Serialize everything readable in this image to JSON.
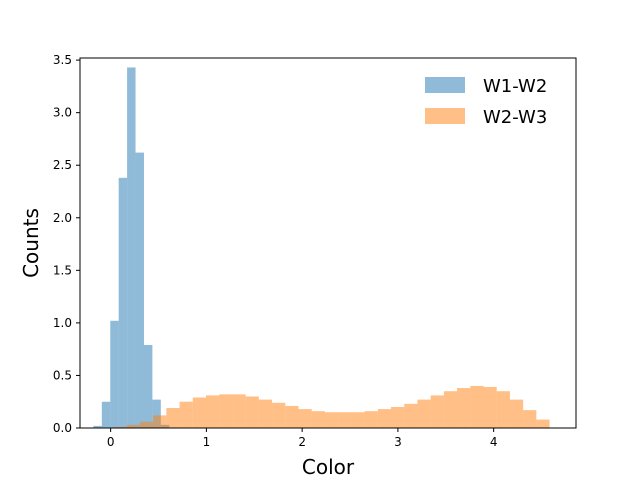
{
  "chart_data": {
    "type": "bar",
    "title": "",
    "xlabel": "Color",
    "ylabel": "Counts",
    "xlim": [
      -0.32,
      4.86
    ],
    "ylim": [
      0,
      3.52
    ],
    "x_ticks": [
      0,
      1,
      2,
      3,
      4
    ],
    "y_ticks": [
      0.0,
      0.5,
      1.0,
      1.5,
      2.0,
      2.5,
      3.0,
      3.5
    ],
    "x_tick_labels": [
      "0",
      "1",
      "2",
      "3",
      "4"
    ],
    "y_tick_labels": [
      "0.0",
      "0.5",
      "1.0",
      "1.5",
      "2.0",
      "2.5",
      "3.0",
      "3.5"
    ],
    "grid": false,
    "legend_position": "top-right",
    "series": [
      {
        "name": "W1-W2",
        "color": "#1f77b4",
        "opacity": 0.5,
        "bin_width": 0.088,
        "bin_starts": [
          -0.18,
          -0.092,
          -0.004,
          0.084,
          0.172,
          0.26,
          0.348,
          0.436,
          0.524
        ],
        "values": [
          0.02,
          0.25,
          1.02,
          2.38,
          3.43,
          2.62,
          0.79,
          0.27,
          0.03
        ]
      },
      {
        "name": "W2-W3",
        "color": "#ff7f0e",
        "opacity": 0.5,
        "bin_width": 0.138,
        "bin_starts": [
          0.03,
          0.168,
          0.306,
          0.444,
          0.582,
          0.72,
          0.858,
          0.996,
          1.134,
          1.272,
          1.41,
          1.548,
          1.686,
          1.824,
          1.962,
          2.1,
          2.238,
          2.376,
          2.514,
          2.652,
          2.79,
          2.928,
          3.066,
          3.204,
          3.342,
          3.48,
          3.618,
          3.756,
          3.894,
          4.032,
          4.17,
          4.308,
          4.446
        ],
        "values": [
          0.01,
          0.03,
          0.06,
          0.12,
          0.19,
          0.25,
          0.29,
          0.31,
          0.32,
          0.32,
          0.3,
          0.27,
          0.24,
          0.21,
          0.18,
          0.16,
          0.15,
          0.15,
          0.15,
          0.16,
          0.18,
          0.2,
          0.23,
          0.27,
          0.31,
          0.35,
          0.38,
          0.4,
          0.39,
          0.35,
          0.27,
          0.17,
          0.08
        ]
      }
    ]
  }
}
